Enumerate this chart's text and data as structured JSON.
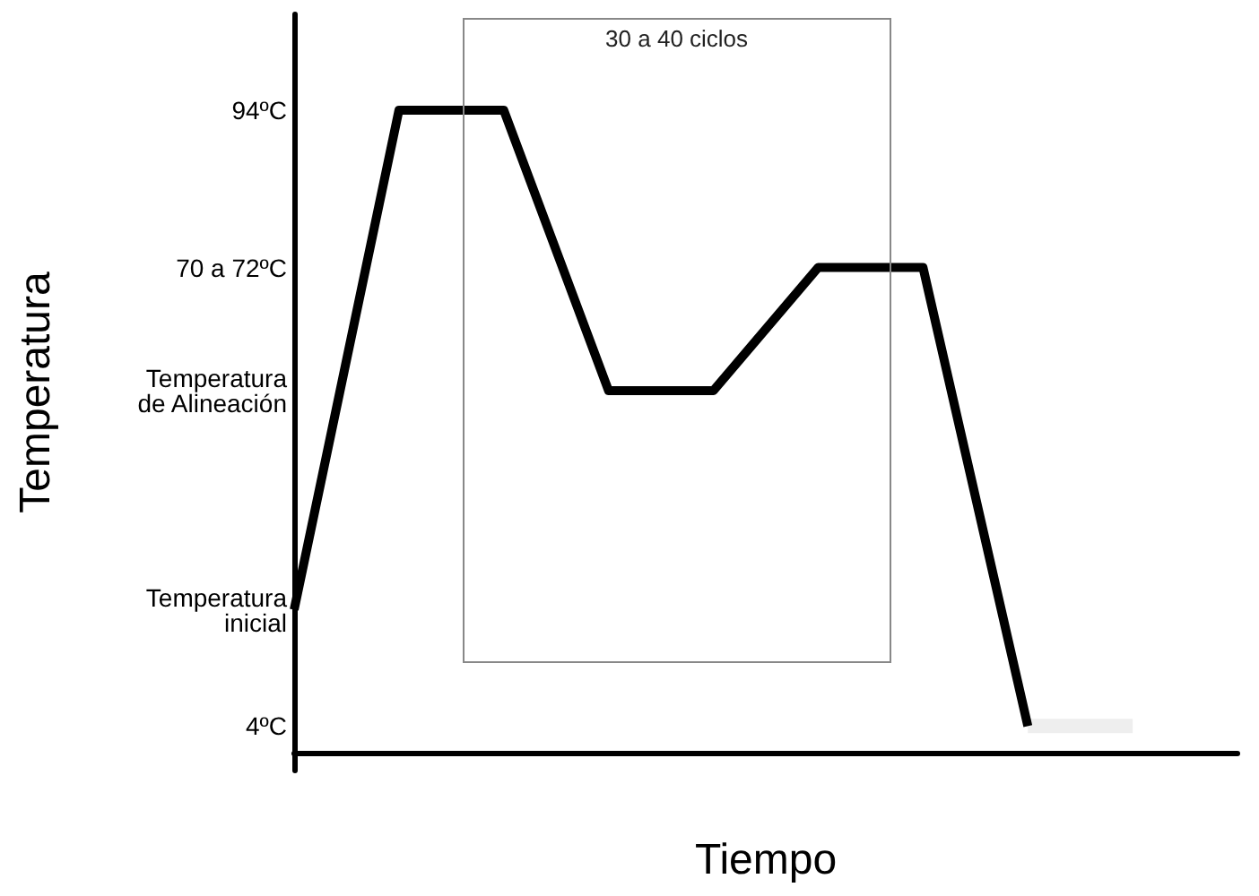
{
  "chart_data": {
    "type": "line",
    "xlabel": "Tiempo",
    "ylabel": "Temperatura",
    "categories": [
      null,
      null,
      null,
      null,
      null,
      null,
      null,
      null,
      null,
      null
    ],
    "ylim": [
      -2.5,
      108
    ],
    "yticks": [
      {
        "value": 94,
        "label": "94ºC"
      },
      {
        "value": 71,
        "label": "70 a 72ºC"
      },
      {
        "value": 53,
        "label": "Temperatura\nde Alineación"
      },
      {
        "value": 21,
        "label": "Temperatura\ninicial"
      },
      {
        "value": 4,
        "label": "4ºC"
      }
    ],
    "grid": false,
    "marker": "none",
    "series": [
      {
        "color": "#000000",
        "values": [
          21,
          94,
          94,
          53,
          53,
          71,
          71,
          4,
          null,
          null
        ]
      },
      {
        "color": "#eeeeee",
        "values": [
          null,
          null,
          null,
          null,
          null,
          null,
          null,
          4,
          4,
          null
        ]
      }
    ],
    "annotations": [
      "30 a 40 ciclos"
    ]
  }
}
